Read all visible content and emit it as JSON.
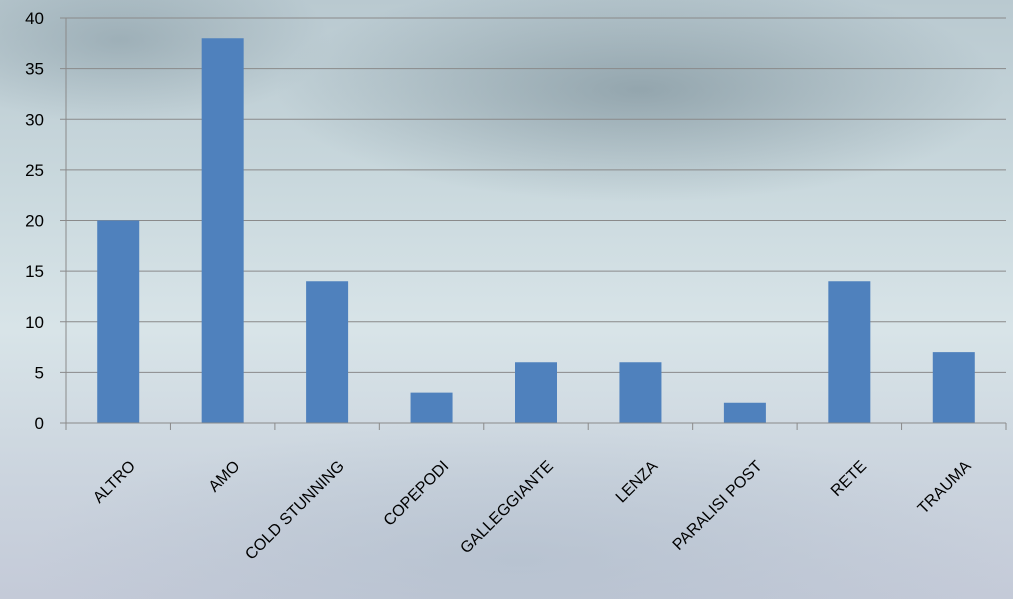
{
  "chart_data": {
    "type": "bar",
    "categories": [
      "ALTRO",
      "AMO",
      "COLD STUNNING",
      "COPEPODI",
      "GALLEGGIANTE",
      "LENZA",
      "PARALISI POST",
      "RETE",
      "TRAUMA"
    ],
    "values": [
      20,
      38,
      14,
      3,
      6,
      6,
      2,
      14,
      7
    ],
    "ylim": [
      0,
      40
    ],
    "yticks": [
      0,
      5,
      10,
      15,
      20,
      25,
      30,
      35,
      40
    ],
    "title": "",
    "xlabel": "",
    "ylabel": "",
    "grid": true,
    "legend": "none",
    "bar_color": "#4f81bd",
    "gridline_color": "#8a8a8a"
  }
}
